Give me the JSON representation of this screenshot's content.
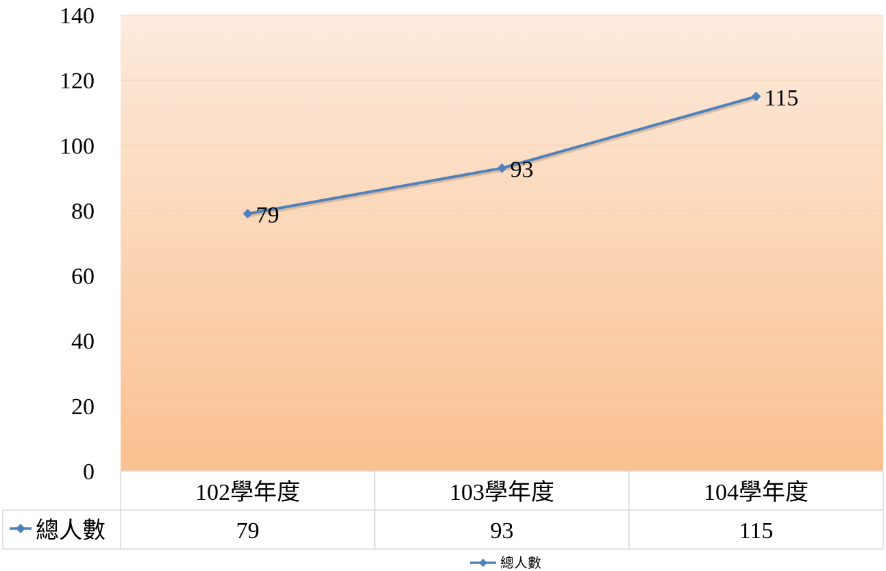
{
  "chart_data": {
    "type": "line",
    "title": "",
    "xlabel": "",
    "ylabel": "",
    "categories": [
      "102學年度",
      "103學年度",
      "104學年度"
    ],
    "series": [
      {
        "name": "總人數",
        "values": [
          79,
          93,
          115
        ]
      }
    ],
    "ylim": [
      0,
      140
    ],
    "yticks": [
      0,
      20,
      40,
      60,
      80,
      100,
      120,
      140
    ],
    "grid": true,
    "data_table": true,
    "legend_position": "bottom",
    "colors": {
      "line": "#4F81BD",
      "plot_bg_top": "#FDEBDD",
      "plot_bg_bottom": "#FAC08F",
      "gridline": "#F3D3B8",
      "table_border": "#D9D9D9"
    }
  }
}
